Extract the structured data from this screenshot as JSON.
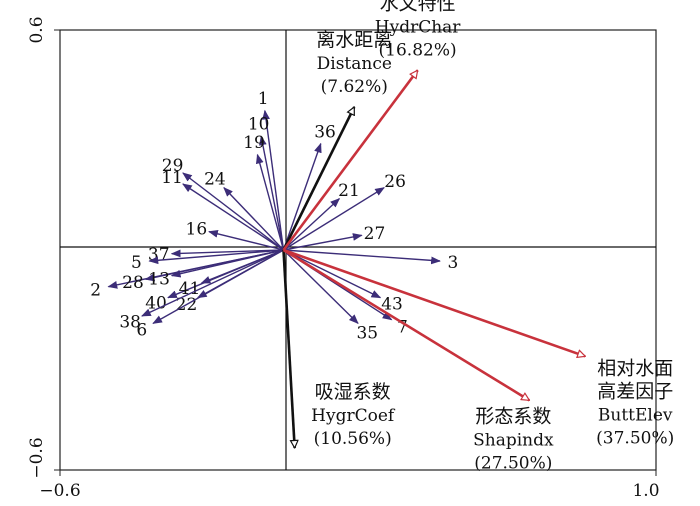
{
  "chart_data": {
    "type": "biplot",
    "xlim": [
      -0.6,
      1.0
    ],
    "ylim": [
      -0.6,
      0.6
    ],
    "x_ticks": [
      {
        "value": -0.6,
        "label": "−0.6"
      },
      {
        "value": 1.0,
        "label": "1.0"
      }
    ],
    "y_ticks": [
      {
        "value": 0.6,
        "label": "0.6"
      },
      {
        "value": -0.6,
        "label": "−0.6"
      }
    ],
    "colors": {
      "species_arrow": "#3c2d78",
      "env_red": "#c8323c",
      "env_black": "#111111"
    },
    "species": [
      {
        "label": "1",
        "x": -0.05,
        "y": 0.38
      },
      {
        "label": "10",
        "x": -0.06,
        "y": 0.31
      },
      {
        "label": "19",
        "x": -0.07,
        "y": 0.26
      },
      {
        "label": "29",
        "x": -0.27,
        "y": 0.21
      },
      {
        "label": "11",
        "x": -0.27,
        "y": 0.18
      },
      {
        "label": "24",
        "x": -0.16,
        "y": 0.17
      },
      {
        "label": "36",
        "x": 0.1,
        "y": 0.29
      },
      {
        "label": "21",
        "x": 0.15,
        "y": 0.14
      },
      {
        "label": "26",
        "x": 0.27,
        "y": 0.17
      },
      {
        "label": "27",
        "x": 0.21,
        "y": 0.04
      },
      {
        "label": "16",
        "x": -0.2,
        "y": 0.05
      },
      {
        "label": "37",
        "x": -0.3,
        "y": -0.01
      },
      {
        "label": "5",
        "x": -0.36,
        "y": -0.03
      },
      {
        "label": "2",
        "x": -0.47,
        "y": -0.1
      },
      {
        "label": "28",
        "x": -0.37,
        "y": -0.08
      },
      {
        "label": "13",
        "x": -0.3,
        "y": -0.07
      },
      {
        "label": "40",
        "x": -0.31,
        "y": -0.13
      },
      {
        "label": "41",
        "x": -0.22,
        "y": -0.09
      },
      {
        "label": "22",
        "x": -0.23,
        "y": -0.13
      },
      {
        "label": "38",
        "x": -0.38,
        "y": -0.18
      },
      {
        "label": "6",
        "x": -0.35,
        "y": -0.2
      },
      {
        "label": "3",
        "x": 0.42,
        "y": -0.03
      },
      {
        "label": "43",
        "x": 0.26,
        "y": -0.13
      },
      {
        "label": "7",
        "x": 0.29,
        "y": -0.19
      },
      {
        "label": "35",
        "x": 0.2,
        "y": -0.2
      }
    ],
    "env_vars": [
      {
        "name_cn": "离水距离",
        "name_en": "Distance",
        "percent": "(7.62%)",
        "x": 0.19,
        "y": 0.39,
        "color": "black"
      },
      {
        "name_cn": "水文特性",
        "name_en": "HydrChar",
        "percent": "(16.82%)",
        "x": 0.36,
        "y": 0.49,
        "color": "red"
      },
      {
        "name_cn": "吸湿系数",
        "name_en": "HygrCoef",
        "percent": "(10.56%)",
        "x": 0.03,
        "y": -0.54,
        "color": "black"
      },
      {
        "name_cn": "形态系数",
        "name_en": "Shapindx",
        "percent": "(27.50%)",
        "x": 0.66,
        "y": -0.41,
        "color": "red"
      },
      {
        "name_cn_line1": "相对水面",
        "name_cn_line2": "高差因子",
        "name_en": "ButtElev",
        "percent": "(37.50%)",
        "x": 0.81,
        "y": -0.29,
        "color": "red"
      }
    ]
  }
}
